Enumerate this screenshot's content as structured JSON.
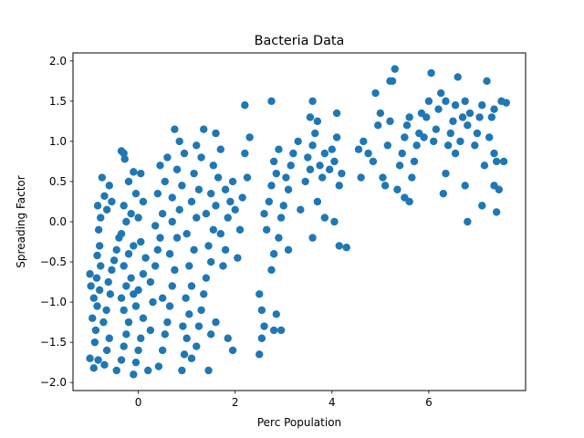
{
  "chart_data": {
    "type": "scatter",
    "title": "Bacteria Data",
    "xlabel": "Perc Population",
    "ylabel": "Spreading Factor",
    "xlim": [
      -1.35,
      8.0
    ],
    "ylim": [
      -2.1,
      2.1
    ],
    "xticks": [
      0,
      2,
      4,
      6
    ],
    "xtick_labels": [
      "0",
      "2",
      "4",
      "6"
    ],
    "yticks": [
      -2.0,
      -1.5,
      -1.0,
      -0.5,
      0.0,
      0.5,
      1.0,
      1.5,
      2.0
    ],
    "ytick_labels": [
      "−2.0",
      "−1.5",
      "−1.0",
      "−0.5",
      "0.0",
      "0.5",
      "1.0",
      "1.5",
      "2.0"
    ],
    "grid": false,
    "legend": "none",
    "marker_color": "#1f77b4",
    "series": [
      {
        "points": [
          [
            -0.83,
            -1.72
          ],
          [
            -0.9,
            -1.5
          ],
          [
            -0.88,
            -1.35
          ],
          [
            -0.95,
            -1.2
          ],
          [
            -0.85,
            -1.05
          ],
          [
            -0.92,
            -0.95
          ],
          [
            -0.8,
            -0.85
          ],
          [
            -0.86,
            -0.7
          ],
          [
            -0.78,
            -0.55
          ],
          [
            -0.7,
            -1.78
          ],
          [
            -0.65,
            -1.6
          ],
          [
            -0.6,
            -1.45
          ],
          [
            -0.72,
            -1.25
          ],
          [
            -0.66,
            -1.1
          ],
          [
            -0.58,
            -0.9
          ],
          [
            -0.62,
            -0.75
          ],
          [
            -0.55,
            -0.6
          ],
          [
            -0.5,
            -0.48
          ],
          [
            -0.45,
            -0.35
          ],
          [
            -0.4,
            -0.2
          ],
          [
            -0.85,
            -0.42
          ],
          [
            -0.8,
            -0.3
          ],
          [
            -0.82,
            -0.1
          ],
          [
            -0.78,
            0.05
          ],
          [
            -0.84,
            0.2
          ],
          [
            -0.7,
            0.32
          ],
          [
            -0.6,
            0.45
          ],
          [
            -0.75,
            0.55
          ],
          [
            -0.65,
            0.15
          ],
          [
            -0.55,
            0.25
          ],
          [
            -1.0,
            -0.65
          ],
          [
            -0.98,
            -0.8
          ],
          [
            -1.0,
            -1.7
          ],
          [
            -0.92,
            -1.82
          ],
          [
            -0.45,
            -1.85
          ],
          [
            -0.35,
            -1.72
          ],
          [
            -0.3,
            -1.55
          ],
          [
            -0.25,
            -1.4
          ],
          [
            -0.2,
            -1.25
          ],
          [
            -0.3,
            -1.1
          ],
          [
            -0.35,
            -0.95
          ],
          [
            -0.25,
            -0.8
          ],
          [
            -0.15,
            -0.7
          ],
          [
            -0.3,
            -0.55
          ],
          [
            -0.2,
            -0.4
          ],
          [
            -0.1,
            -0.3
          ],
          [
            -0.35,
            -0.15
          ],
          [
            -0.25,
            0.0
          ],
          [
            -0.15,
            0.1
          ],
          [
            -0.3,
            0.2
          ],
          [
            -0.05,
            0.35
          ],
          [
            -0.2,
            0.5
          ],
          [
            -0.1,
            0.62
          ],
          [
            0.05,
            0.6
          ],
          [
            -0.35,
            0.88
          ],
          [
            -0.3,
            0.85
          ],
          [
            -0.28,
            0.78
          ],
          [
            -0.1,
            -1.9
          ],
          [
            -0.05,
            -1.75
          ],
          [
            0.0,
            -1.6
          ],
          [
            0.05,
            -1.45
          ],
          [
            0.1,
            -1.2
          ],
          [
            -0.05,
            -1.05
          ],
          [
            0.0,
            -0.85
          ],
          [
            0.1,
            -0.65
          ],
          [
            0.15,
            -0.45
          ],
          [
            0.05,
            -0.25
          ],
          [
            0.0,
            0.05
          ],
          [
            0.1,
            0.25
          ],
          [
            -0.1,
            -0.9
          ],
          [
            0.2,
            -1.85
          ],
          [
            0.25,
            -1.35
          ],
          [
            0.3,
            -1.0
          ],
          [
            0.25,
            -0.75
          ],
          [
            0.35,
            -0.55
          ],
          [
            0.4,
            -0.35
          ],
          [
            0.45,
            -0.2
          ],
          [
            0.35,
            -0.05
          ],
          [
            0.5,
            0.1
          ],
          [
            0.4,
            0.35
          ],
          [
            0.55,
            0.5
          ],
          [
            0.45,
            0.7
          ],
          [
            0.6,
            0.8
          ],
          [
            0.42,
            -1.8
          ],
          [
            0.5,
            -1.6
          ],
          [
            0.55,
            -1.4
          ],
          [
            0.6,
            -1.25
          ],
          [
            0.65,
            -1.05
          ],
          [
            0.5,
            -0.95
          ],
          [
            0.7,
            -0.8
          ],
          [
            0.75,
            -0.6
          ],
          [
            0.65,
            -0.4
          ],
          [
            0.8,
            -0.2
          ],
          [
            0.7,
            0.0
          ],
          [
            0.85,
            0.15
          ],
          [
            0.7,
            0.3
          ],
          [
            0.9,
            0.45
          ],
          [
            0.8,
            0.65
          ],
          [
            0.95,
            0.85
          ],
          [
            0.85,
            1.0
          ],
          [
            0.75,
            1.15
          ],
          [
            0.9,
            -1.85
          ],
          [
            0.95,
            -1.65
          ],
          [
            1.0,
            -1.45
          ],
          [
            0.92,
            -1.3
          ],
          [
            1.05,
            -1.15
          ],
          [
            0.98,
            -0.95
          ],
          [
            1.1,
            -0.8
          ],
          [
            1.05,
            -0.55
          ],
          [
            1.15,
            -0.35
          ],
          [
            1.0,
            -0.15
          ],
          [
            1.2,
            0.05
          ],
          [
            1.1,
            0.25
          ],
          [
            1.25,
            0.4
          ],
          [
            1.15,
            0.6
          ],
          [
            1.3,
            0.8
          ],
          [
            1.2,
            0.95
          ],
          [
            1.35,
            1.15
          ],
          [
            1.1,
            -1.7
          ],
          [
            1.2,
            -1.55
          ],
          [
            1.25,
            -1.3
          ],
          [
            1.3,
            -1.1
          ],
          [
            1.35,
            -0.9
          ],
          [
            1.4,
            -0.7
          ],
          [
            1.5,
            -0.5
          ],
          [
            1.45,
            -0.3
          ],
          [
            1.55,
            -0.1
          ],
          [
            1.4,
            0.1
          ],
          [
            1.6,
            0.2
          ],
          [
            1.5,
            0.35
          ],
          [
            1.65,
            0.55
          ],
          [
            1.55,
            0.7
          ],
          [
            1.7,
            0.9
          ],
          [
            1.6,
            1.1
          ],
          [
            1.45,
            -1.85
          ],
          [
            1.5,
            -1.4
          ],
          [
            1.6,
            -1.25
          ],
          [
            1.75,
            -0.55
          ],
          [
            1.8,
            -0.35
          ],
          [
            1.7,
            -0.15
          ],
          [
            1.85,
            0.05
          ],
          [
            1.9,
            0.25
          ],
          [
            1.8,
            0.4
          ],
          [
            1.95,
            0.5
          ],
          [
            1.85,
            -1.45
          ],
          [
            1.95,
            -1.6
          ],
          [
            2.05,
            -0.45
          ],
          [
            2.1,
            -0.1
          ],
          [
            2.0,
            0.15
          ],
          [
            2.15,
            0.3
          ],
          [
            2.25,
            0.55
          ],
          [
            2.2,
            0.85
          ],
          [
            2.3,
            1.05
          ],
          [
            2.2,
            1.45
          ],
          [
            2.5,
            -1.65
          ],
          [
            2.55,
            -1.45
          ],
          [
            2.6,
            -1.3
          ],
          [
            2.55,
            -1.1
          ],
          [
            2.5,
            -0.9
          ],
          [
            2.65,
            -0.1
          ],
          [
            2.6,
            0.1
          ],
          [
            2.7,
            0.25
          ],
          [
            2.75,
            0.45
          ],
          [
            2.85,
            0.6
          ],
          [
            2.8,
            0.75
          ],
          [
            2.9,
            0.9
          ],
          [
            2.75,
            1.5
          ],
          [
            2.8,
            -1.35
          ],
          [
            2.95,
            -1.35
          ],
          [
            2.85,
            -1.15
          ],
          [
            2.75,
            -0.6
          ],
          [
            2.8,
            -0.4
          ],
          [
            2.9,
            -0.2
          ],
          [
            2.95,
            0.05
          ],
          [
            3.0,
            0.2
          ],
          [
            3.1,
            0.4
          ],
          [
            3.05,
            0.55
          ],
          [
            3.15,
            0.7
          ],
          [
            3.2,
            0.85
          ],
          [
            3.3,
            1.0
          ],
          [
            3.35,
            0.15
          ],
          [
            3.1,
            -0.35
          ],
          [
            3.45,
            0.5
          ],
          [
            3.55,
            0.65
          ],
          [
            3.5,
            0.8
          ],
          [
            3.6,
            0.95
          ],
          [
            3.65,
            1.1
          ],
          [
            3.55,
            1.3
          ],
          [
            3.6,
            1.5
          ],
          [
            3.7,
            1.25
          ],
          [
            3.75,
            0.7
          ],
          [
            3.8,
            0.55
          ],
          [
            3.85,
            0.85
          ],
          [
            3.7,
            0.25
          ],
          [
            3.85,
            0.05
          ],
          [
            3.6,
            -0.2
          ],
          [
            3.95,
            0.65
          ],
          [
            4.05,
            0.75
          ],
          [
            4.0,
            0.9
          ],
          [
            4.1,
            1.05
          ],
          [
            4.15,
            0.45
          ],
          [
            4.2,
            0.6
          ],
          [
            4.05,
            0.0
          ],
          [
            4.15,
            -0.3
          ],
          [
            4.3,
            -0.32
          ],
          [
            4.1,
            1.35
          ],
          [
            4.6,
            0.55
          ],
          [
            4.55,
            0.9
          ],
          [
            4.65,
            1.0
          ],
          [
            4.75,
            0.85
          ],
          [
            4.85,
            0.75
          ],
          [
            4.9,
            1.6
          ],
          [
            4.95,
            1.2
          ],
          [
            5.0,
            1.35
          ],
          [
            5.1,
            0.45
          ],
          [
            5.05,
            0.55
          ],
          [
            5.15,
            0.95
          ],
          [
            5.2,
            1.25
          ],
          [
            5.25,
            1.75
          ],
          [
            5.3,
            1.9
          ],
          [
            5.35,
            0.4
          ],
          [
            5.4,
            0.7
          ],
          [
            5.45,
            0.85
          ],
          [
            5.5,
            1.05
          ],
          [
            5.55,
            1.2
          ],
          [
            5.6,
            1.3
          ],
          [
            5.5,
            0.3
          ],
          [
            5.6,
            0.25
          ],
          [
            5.65,
            0.55
          ],
          [
            5.7,
            0.75
          ],
          [
            5.75,
            0.95
          ],
          [
            5.8,
            1.1
          ],
          [
            5.85,
            1.35
          ],
          [
            5.9,
            1.05
          ],
          [
            5.95,
            1.3
          ],
          [
            6.0,
            1.5
          ],
          [
            6.05,
            1.85
          ],
          [
            6.1,
            1.0
          ],
          [
            6.15,
            1.15
          ],
          [
            6.2,
            1.4
          ],
          [
            6.25,
            1.6
          ],
          [
            6.3,
            0.35
          ],
          [
            6.35,
            0.6
          ],
          [
            6.4,
            0.95
          ],
          [
            6.45,
            1.1
          ],
          [
            6.5,
            1.25
          ],
          [
            6.55,
            1.45
          ],
          [
            6.6,
            1.8
          ],
          [
            6.55,
            0.85
          ],
          [
            6.65,
            1.0
          ],
          [
            6.7,
            1.3
          ],
          [
            6.75,
            1.5
          ],
          [
            6.8,
            1.2
          ],
          [
            6.85,
            1.35
          ],
          [
            6.75,
            0.45
          ],
          [
            6.8,
            0.0
          ],
          [
            6.95,
            0.95
          ],
          [
            7.0,
            1.1
          ],
          [
            7.05,
            1.3
          ],
          [
            7.1,
            1.45
          ],
          [
            7.1,
            0.2
          ],
          [
            7.15,
            0.7
          ],
          [
            7.2,
            1.75
          ],
          [
            7.25,
            1.05
          ],
          [
            7.3,
            1.3
          ],
          [
            7.35,
            0.85
          ],
          [
            7.4,
            0.75
          ],
          [
            7.35,
            0.45
          ],
          [
            7.45,
            0.4
          ],
          [
            7.4,
            0.12
          ],
          [
            7.5,
            1.5
          ],
          [
            7.55,
            0.75
          ],
          [
            7.6,
            1.48
          ],
          [
            7.35,
            1.4
          ],
          [
            6.35,
            1.5
          ],
          [
            5.2,
            1.75
          ]
        ]
      }
    ]
  }
}
